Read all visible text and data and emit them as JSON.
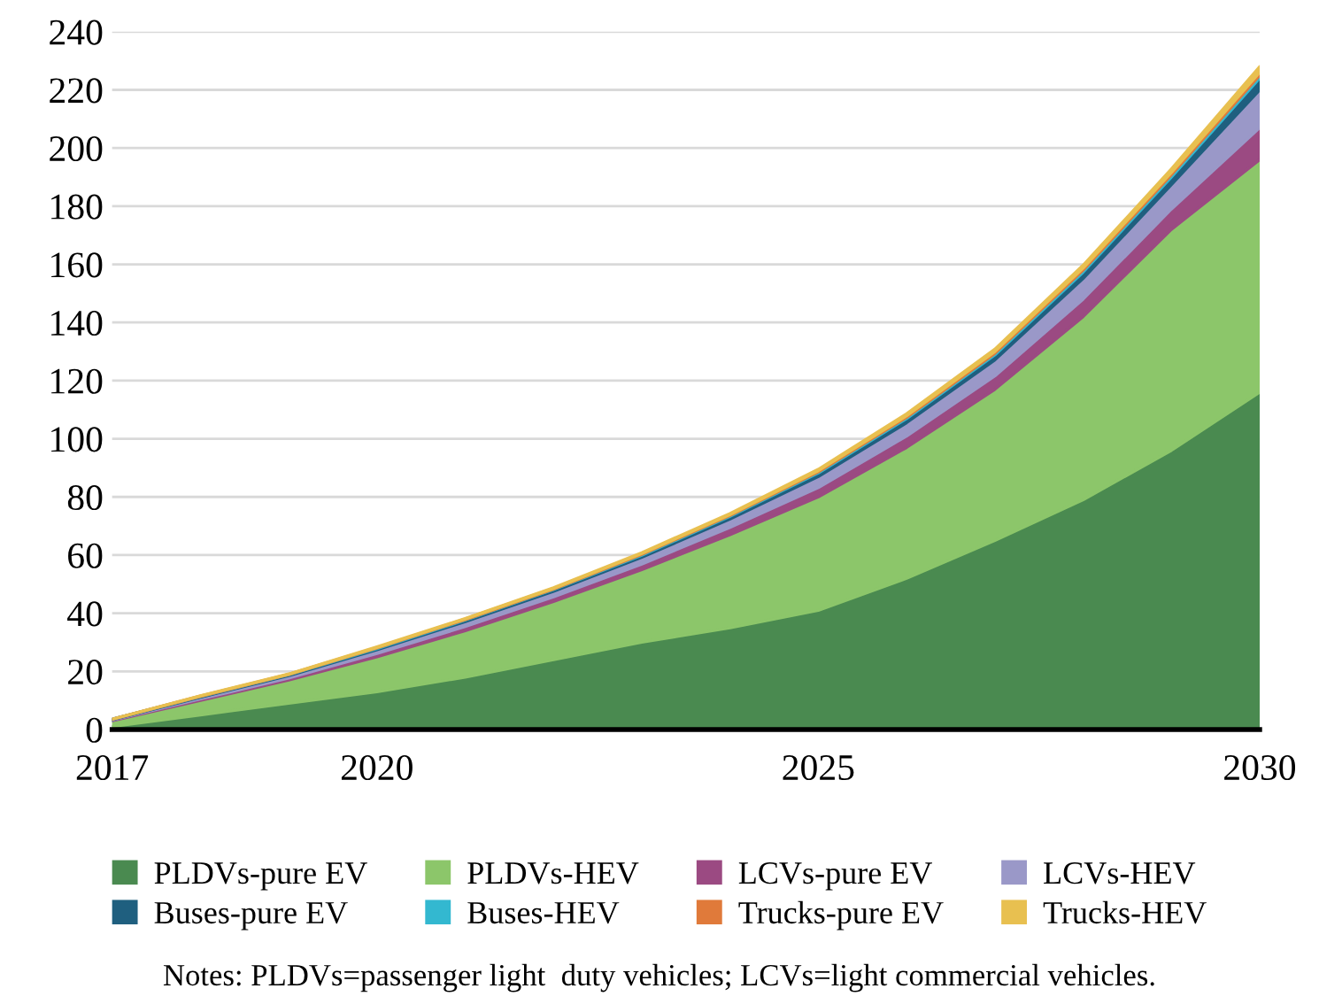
{
  "chart_data": {
    "type": "area",
    "stacked": true,
    "categories": [
      "2017",
      null,
      null,
      "2020",
      null,
      null,
      null,
      null,
      "2025",
      null,
      null,
      null,
      null,
      "2030"
    ],
    "series": [
      {
        "name": "PLDVs-pure EV",
        "color": "#4a8a50",
        "values": [
          1,
          5,
          9,
          13,
          18,
          24,
          30,
          35,
          41,
          52,
          65,
          79,
          96,
          116
        ]
      },
      {
        "name": "PLDVs-HEV",
        "color": "#8cc66a",
        "values": [
          2,
          5,
          8,
          12,
          16,
          20,
          25,
          32,
          39,
          45,
          52,
          63,
          76,
          80
        ]
      },
      {
        "name": "LCVs-pure EV",
        "color": "#9b4a82",
        "values": [
          0.2,
          0.5,
          0.7,
          1.1,
          1.4,
          1.6,
          1.9,
          2.5,
          3.2,
          3.9,
          4.6,
          6,
          7,
          11
        ]
      },
      {
        "name": "LCVs-HEV",
        "color": "#9a98c8",
        "values": [
          0.2,
          0.6,
          0.8,
          1.3,
          1.7,
          1.9,
          2.3,
          2.9,
          3.8,
          4.6,
          5.5,
          7.1,
          8.4,
          13
        ]
      },
      {
        "name": "Buses-pure EV",
        "color": "#1f5f7f",
        "values": [
          0.1,
          0.2,
          0.3,
          0.4,
          0.5,
          0.6,
          0.7,
          0.9,
          1.2,
          1.4,
          1.7,
          2.2,
          2.6,
          4
        ]
      },
      {
        "name": "Buses-HEV",
        "color": "#33b8d0",
        "values": [
          0,
          0.1,
          0.1,
          0.2,
          0.2,
          0.2,
          0.3,
          0.3,
          0.4,
          0.5,
          0.6,
          0.7,
          0.8,
          1
        ]
      },
      {
        "name": "Trucks-pure EV",
        "color": "#e07a3a",
        "values": [
          0,
          0.1,
          0.1,
          0.2,
          0.2,
          0.2,
          0.3,
          0.3,
          0.4,
          0.5,
          0.6,
          0.7,
          0.8,
          1
        ]
      },
      {
        "name": "Trucks-HEV",
        "color": "#e8c050",
        "values": [
          0,
          0.1,
          0.1,
          0.2,
          0.2,
          0.3,
          0.3,
          0.4,
          0.5,
          0.7,
          0.8,
          1,
          1.2,
          2
        ]
      }
    ],
    "ylim": [
      0,
      240
    ],
    "yticks": [
      0,
      20,
      40,
      60,
      80,
      100,
      120,
      140,
      160,
      180,
      200,
      220,
      240
    ],
    "grid": "y",
    "legend": "bottom",
    "annotations": [
      "Notes: PLDVs=passenger light  duty vehicles; LCVs=light commercial vehicles."
    ]
  }
}
